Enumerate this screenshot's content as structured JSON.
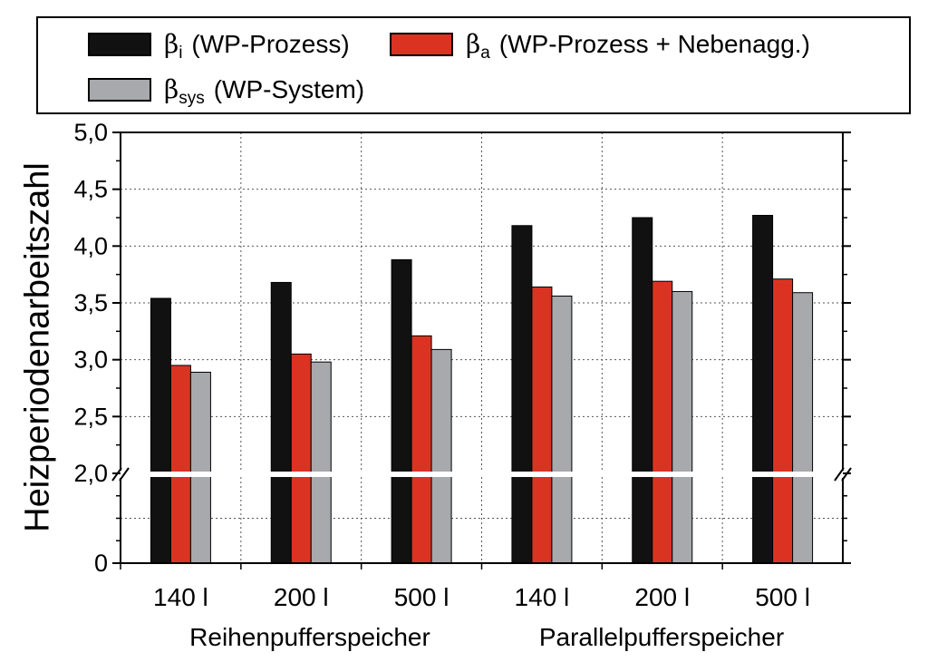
{
  "chart_data": {
    "type": "bar",
    "title": "",
    "ylabel": "Heizperiodenarbeitszahl",
    "xlabel": "",
    "ylim": [
      0,
      5
    ],
    "axis_break": {
      "from": 0,
      "to": 2.0
    },
    "categories": [
      "140 l",
      "200 l",
      "500 l",
      "140 l",
      "200 l",
      "500 l"
    ],
    "groups": [
      {
        "label": "Reihenpufferspeicher",
        "categories": [
          0,
          1,
          2
        ]
      },
      {
        "label": "Parallelpufferspeicher",
        "categories": [
          3,
          4,
          5
        ]
      }
    ],
    "y_ticks": [
      {
        "value": 0,
        "label": "0"
      },
      {
        "value": 2.0,
        "label": "2,0"
      },
      {
        "value": 2.5,
        "label": "2,5"
      },
      {
        "value": 3.0,
        "label": "3,0"
      },
      {
        "value": 3.5,
        "label": "3,5"
      },
      {
        "value": 4.0,
        "label": "4,0"
      },
      {
        "value": 4.5,
        "label": "4,5"
      },
      {
        "value": 5.0,
        "label": "5,0"
      }
    ],
    "series": [
      {
        "name": "β_i (WP-Prozess)",
        "symbol": "β",
        "subscript": "i",
        "text": "(WP-Prozess)",
        "color": "#111111",
        "values": [
          3.54,
          3.68,
          3.88,
          4.18,
          4.25,
          4.27
        ]
      },
      {
        "name": "β_a (WP-Prozess + Nebenagg.)",
        "symbol": "β",
        "subscript": "a",
        "text": "(WP-Prozess + Nebenagg.)",
        "color": "#db3322",
        "values": [
          2.95,
          3.05,
          3.21,
          3.64,
          3.69,
          3.71
        ]
      },
      {
        "name": "β_sys (WP-System)",
        "symbol": "β",
        "subscript": "sys",
        "text": "(WP-System)",
        "color": "#a7a9ac",
        "values": [
          2.89,
          2.98,
          3.09,
          3.56,
          3.6,
          3.59
        ]
      }
    ],
    "grid": true,
    "legend_position": "top"
  }
}
